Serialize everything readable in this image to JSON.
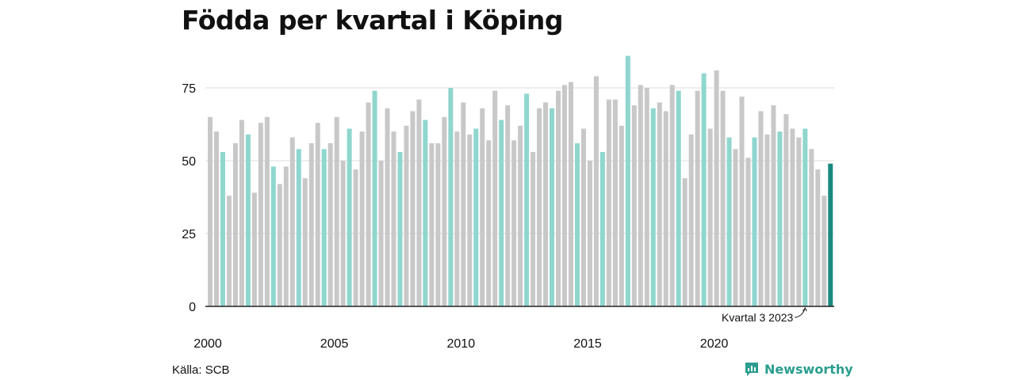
{
  "chart_data": {
    "type": "bar",
    "title": "Födda per kvartal i Köping",
    "xlabel": "",
    "ylabel": "",
    "ylim": [
      0,
      88
    ],
    "yticks": [
      0,
      25,
      50,
      75
    ],
    "xticks": [
      "2000",
      "2005",
      "2010",
      "2015",
      "2020"
    ],
    "grid": true,
    "colors": {
      "default": "#c8c8c8",
      "highlight": "#8fd6cf",
      "latest": "#1a8a7e"
    },
    "highlight_rule": "quarter 3 of each year",
    "annotation": "Kvartal 3 2023",
    "periods": [
      {
        "year": 2000,
        "q": 1,
        "value": 65
      },
      {
        "year": 2000,
        "q": 2,
        "value": 60
      },
      {
        "year": 2000,
        "q": 3,
        "value": 53
      },
      {
        "year": 2000,
        "q": 4,
        "value": 38
      },
      {
        "year": 2001,
        "q": 1,
        "value": 56
      },
      {
        "year": 2001,
        "q": 2,
        "value": 64
      },
      {
        "year": 2001,
        "q": 3,
        "value": 59
      },
      {
        "year": 2001,
        "q": 4,
        "value": 39
      },
      {
        "year": 2002,
        "q": 1,
        "value": 63
      },
      {
        "year": 2002,
        "q": 2,
        "value": 65
      },
      {
        "year": 2002,
        "q": 3,
        "value": 48
      },
      {
        "year": 2002,
        "q": 4,
        "value": 42
      },
      {
        "year": 2003,
        "q": 1,
        "value": 48
      },
      {
        "year": 2003,
        "q": 2,
        "value": 58
      },
      {
        "year": 2003,
        "q": 3,
        "value": 54
      },
      {
        "year": 2003,
        "q": 4,
        "value": 44
      },
      {
        "year": 2004,
        "q": 1,
        "value": 56
      },
      {
        "year": 2004,
        "q": 2,
        "value": 63
      },
      {
        "year": 2004,
        "q": 3,
        "value": 54
      },
      {
        "year": 2004,
        "q": 4,
        "value": 56
      },
      {
        "year": 2005,
        "q": 1,
        "value": 65
      },
      {
        "year": 2005,
        "q": 2,
        "value": 50
      },
      {
        "year": 2005,
        "q": 3,
        "value": 61
      },
      {
        "year": 2005,
        "q": 4,
        "value": 47
      },
      {
        "year": 2006,
        "q": 1,
        "value": 60
      },
      {
        "year": 2006,
        "q": 2,
        "value": 70
      },
      {
        "year": 2006,
        "q": 3,
        "value": 74
      },
      {
        "year": 2006,
        "q": 4,
        "value": 50
      },
      {
        "year": 2007,
        "q": 1,
        "value": 68
      },
      {
        "year": 2007,
        "q": 2,
        "value": 60
      },
      {
        "year": 2007,
        "q": 3,
        "value": 53
      },
      {
        "year": 2007,
        "q": 4,
        "value": 62
      },
      {
        "year": 2008,
        "q": 1,
        "value": 67
      },
      {
        "year": 2008,
        "q": 2,
        "value": 71
      },
      {
        "year": 2008,
        "q": 3,
        "value": 64
      },
      {
        "year": 2008,
        "q": 4,
        "value": 56
      },
      {
        "year": 2009,
        "q": 1,
        "value": 56
      },
      {
        "year": 2009,
        "q": 2,
        "value": 65
      },
      {
        "year": 2009,
        "q": 3,
        "value": 75
      },
      {
        "year": 2009,
        "q": 4,
        "value": 60
      },
      {
        "year": 2010,
        "q": 1,
        "value": 70
      },
      {
        "year": 2010,
        "q": 2,
        "value": 59
      },
      {
        "year": 2010,
        "q": 3,
        "value": 61
      },
      {
        "year": 2010,
        "q": 4,
        "value": 68
      },
      {
        "year": 2011,
        "q": 1,
        "value": 57
      },
      {
        "year": 2011,
        "q": 2,
        "value": 74
      },
      {
        "year": 2011,
        "q": 3,
        "value": 64
      },
      {
        "year": 2011,
        "q": 4,
        "value": 69
      },
      {
        "year": 2012,
        "q": 1,
        "value": 57
      },
      {
        "year": 2012,
        "q": 2,
        "value": 62
      },
      {
        "year": 2012,
        "q": 3,
        "value": 73
      },
      {
        "year": 2012,
        "q": 4,
        "value": 53
      },
      {
        "year": 2013,
        "q": 1,
        "value": 68
      },
      {
        "year": 2013,
        "q": 2,
        "value": 70
      },
      {
        "year": 2013,
        "q": 3,
        "value": 68
      },
      {
        "year": 2013,
        "q": 4,
        "value": 74
      },
      {
        "year": 2014,
        "q": 1,
        "value": 76
      },
      {
        "year": 2014,
        "q": 2,
        "value": 77
      },
      {
        "year": 2014,
        "q": 3,
        "value": 56
      },
      {
        "year": 2014,
        "q": 4,
        "value": 61
      },
      {
        "year": 2015,
        "q": 1,
        "value": 50
      },
      {
        "year": 2015,
        "q": 2,
        "value": 79
      },
      {
        "year": 2015,
        "q": 3,
        "value": 53
      },
      {
        "year": 2015,
        "q": 4,
        "value": 71
      },
      {
        "year": 2016,
        "q": 1,
        "value": 71
      },
      {
        "year": 2016,
        "q": 2,
        "value": 62
      },
      {
        "year": 2016,
        "q": 3,
        "value": 86
      },
      {
        "year": 2016,
        "q": 4,
        "value": 69
      },
      {
        "year": 2017,
        "q": 1,
        "value": 76
      },
      {
        "year": 2017,
        "q": 2,
        "value": 75
      },
      {
        "year": 2017,
        "q": 3,
        "value": 68
      },
      {
        "year": 2017,
        "q": 4,
        "value": 70
      },
      {
        "year": 2018,
        "q": 1,
        "value": 67
      },
      {
        "year": 2018,
        "q": 2,
        "value": 76
      },
      {
        "year": 2018,
        "q": 3,
        "value": 74
      },
      {
        "year": 2018,
        "q": 4,
        "value": 44
      },
      {
        "year": 2019,
        "q": 1,
        "value": 59
      },
      {
        "year": 2019,
        "q": 2,
        "value": 74
      },
      {
        "year": 2019,
        "q": 3,
        "value": 80
      },
      {
        "year": 2019,
        "q": 4,
        "value": 61
      },
      {
        "year": 2020,
        "q": 1,
        "value": 81
      },
      {
        "year": 2020,
        "q": 2,
        "value": 74
      },
      {
        "year": 2020,
        "q": 3,
        "value": 58
      },
      {
        "year": 2020,
        "q": 4,
        "value": 54
      },
      {
        "year": 2021,
        "q": 1,
        "value": 72
      },
      {
        "year": 2021,
        "q": 2,
        "value": 51
      },
      {
        "year": 2021,
        "q": 3,
        "value": 58
      },
      {
        "year": 2021,
        "q": 4,
        "value": 67
      },
      {
        "year": 2022,
        "q": 1,
        "value": 59
      },
      {
        "year": 2022,
        "q": 2,
        "value": 69
      },
      {
        "year": 2022,
        "q": 3,
        "value": 60
      },
      {
        "year": 2022,
        "q": 4,
        "value": 66
      },
      {
        "year": 2023,
        "q": 1,
        "value": 61
      },
      {
        "year": 2023,
        "q": 2,
        "value": 58
      },
      {
        "year": 2023,
        "q": 3,
        "value": 61
      },
      {
        "year": 2023,
        "q": 4,
        "value": 54
      },
      {
        "year": 2024,
        "q": 1,
        "value": 47
      },
      {
        "year": 2024,
        "q": 2,
        "value": 38
      },
      {
        "year": 2024,
        "q": 3,
        "value": 49
      }
    ]
  },
  "source": "Källa: SCB",
  "brand": {
    "name": "Newsworthy",
    "icon": "newsworthy-logo-icon",
    "color": "#2a9d8f"
  }
}
